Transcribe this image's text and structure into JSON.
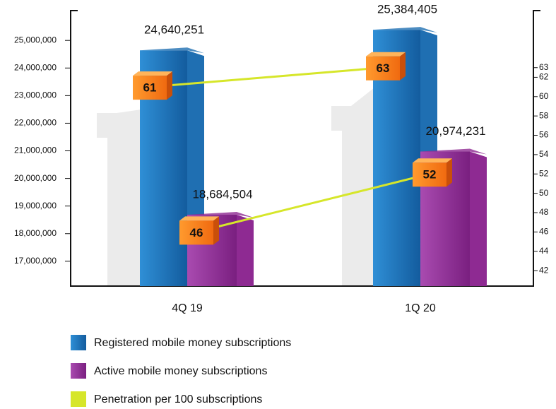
{
  "chart_data": {
    "type": "bar",
    "categories": [
      "4Q 19",
      "1Q 20"
    ],
    "series": [
      {
        "name": "Registered mobile money subscriptions",
        "color": "#1f6fb2",
        "values": [
          24640251,
          25384405
        ],
        "value_labels": [
          "24,640,251",
          "25,384,405"
        ]
      },
      {
        "name": "Active mobile money subscriptions",
        "color": "#8e2a92",
        "values": [
          18684504,
          20974231
        ],
        "value_labels": [
          "18,684,504",
          "20,974,231"
        ]
      }
    ],
    "penetration": {
      "name": "Penetration per 100 subscriptions",
      "color": "#d6e62a",
      "axis": "y2",
      "registered": [
        61,
        63
      ],
      "active": [
        46,
        52
      ]
    },
    "ylim": [
      16100000,
      26080000
    ],
    "yticks": [
      {
        "value": 17000000,
        "label": "17,000,000"
      },
      {
        "value": 18000000,
        "label": "18,000,000"
      },
      {
        "value": 19000000,
        "label": "19,000,000"
      },
      {
        "value": 20000000,
        "label": "20,000,000"
      },
      {
        "value": 21000000,
        "label": "21,000,000"
      },
      {
        "value": 22000000,
        "label": "22,000,000"
      },
      {
        "value": 23000000,
        "label": "23,000,000"
      },
      {
        "value": 24000000,
        "label": "24,000,000"
      },
      {
        "value": 25000000,
        "label": "25,000,000"
      }
    ],
    "y2lim": [
      40.4,
      68.9
    ],
    "y2ticks": [
      42,
      44,
      46,
      48,
      50,
      52,
      54,
      56,
      58,
      60,
      62,
      63
    ]
  }
}
